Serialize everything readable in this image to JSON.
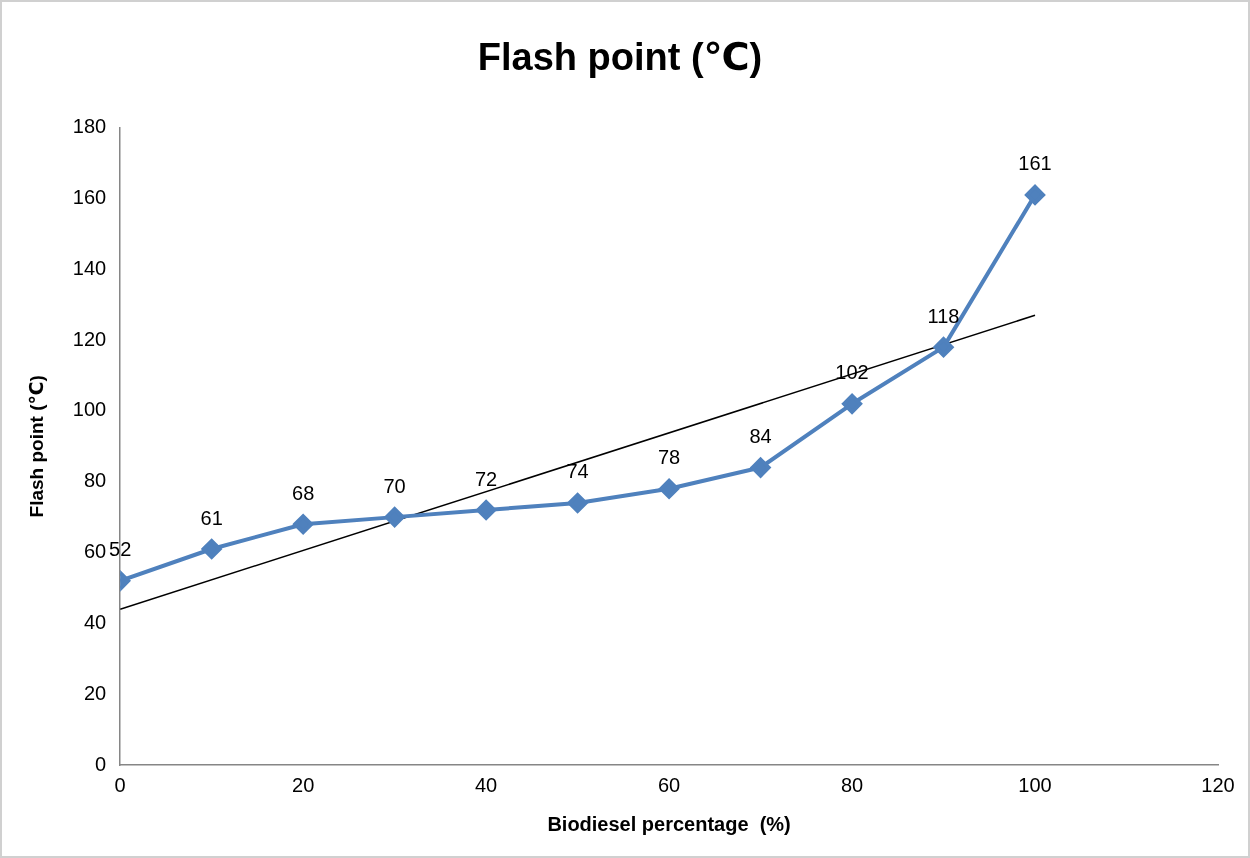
{
  "chart_data": {
    "type": "line",
    "title": "Flash point (℃)",
    "xlabel": "Biodiesel percentage  (%)",
    "ylabel": "Flash point (℃)",
    "x": [
      0,
      10,
      20,
      30,
      40,
      50,
      60,
      70,
      80,
      90,
      100
    ],
    "series": [
      {
        "color": "#4f81bd",
        "marker": "diamond",
        "data_labels": true,
        "values": [
          52,
          61,
          68,
          70,
          72,
          74,
          78,
          84,
          102,
          118,
          161
        ]
      },
      {
        "color": "#000000",
        "marker": "none",
        "x": [
          0,
          100
        ],
        "values": [
          44,
          127
        ]
      }
    ],
    "xlim": [
      0,
      120
    ],
    "xticks": [
      0,
      20,
      40,
      60,
      80,
      100,
      120
    ],
    "ylim": [
      0,
      180
    ],
    "yticks": [
      0,
      20,
      40,
      60,
      80,
      100,
      120,
      140,
      160,
      180
    ],
    "grid": false,
    "legend": false
  }
}
